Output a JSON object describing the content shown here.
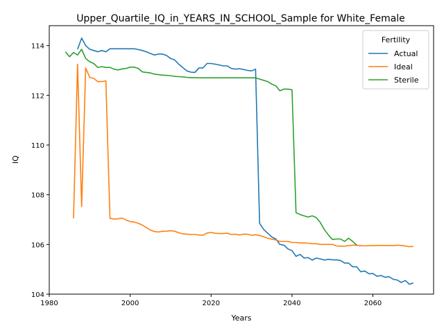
{
  "chart_data": {
    "type": "line",
    "title": "Upper_Quartile_IQ_in_YEARS_IN_SCHOOL_Sample for White_Female",
    "xlabel": "Years",
    "ylabel": "IQ",
    "xlim": [
      1980,
      2075
    ],
    "ylim": [
      104,
      114.8
    ],
    "xticks": [
      1980,
      2000,
      2020,
      2040,
      2060
    ],
    "yticks": [
      104,
      106,
      108,
      110,
      112,
      114
    ],
    "legend": {
      "title": "Fertility",
      "placement": "upper-right"
    },
    "series": [
      {
        "name": "Actual",
        "color": "#1f77b4",
        "points": [
          [
            1987,
            113.85
          ],
          [
            1988,
            114.3
          ],
          [
            1989,
            114.0
          ],
          [
            1990,
            113.85
          ],
          [
            1991,
            113.8
          ],
          [
            1992,
            113.75
          ],
          [
            1993,
            113.8
          ],
          [
            1994,
            113.75
          ],
          [
            1995,
            113.87
          ],
          [
            1996,
            113.87
          ],
          [
            1997,
            113.87
          ],
          [
            1998,
            113.87
          ],
          [
            1999,
            113.87
          ],
          [
            2000,
            113.87
          ],
          [
            2001,
            113.87
          ],
          [
            2002,
            113.84
          ],
          [
            2003,
            113.8
          ],
          [
            2004,
            113.75
          ],
          [
            2005,
            113.68
          ],
          [
            2006,
            113.62
          ],
          [
            2007,
            113.66
          ],
          [
            2008,
            113.66
          ],
          [
            2009,
            113.6
          ],
          [
            2010,
            113.48
          ],
          [
            2011,
            113.42
          ],
          [
            2012,
            113.25
          ],
          [
            2013,
            113.12
          ],
          [
            2014,
            112.98
          ],
          [
            2015,
            112.93
          ],
          [
            2016,
            112.92
          ],
          [
            2017,
            113.1
          ],
          [
            2018,
            113.1
          ],
          [
            2019,
            113.28
          ],
          [
            2020,
            113.28
          ],
          [
            2021,
            113.25
          ],
          [
            2022,
            113.22
          ],
          [
            2023,
            113.18
          ],
          [
            2024,
            113.18
          ],
          [
            2025,
            113.08
          ],
          [
            2026,
            113.05
          ],
          [
            2027,
            113.07
          ],
          [
            2028,
            113.04
          ],
          [
            2029,
            113.0
          ],
          [
            2030,
            112.98
          ],
          [
            2031,
            113.05
          ],
          [
            2032,
            106.85
          ],
          [
            2033,
            106.6
          ],
          [
            2034,
            106.45
          ],
          [
            2035,
            106.3
          ],
          [
            2036,
            106.22
          ],
          [
            2037,
            106.0
          ],
          [
            2038,
            105.97
          ],
          [
            2039,
            105.82
          ],
          [
            2040,
            105.75
          ],
          [
            2041,
            105.52
          ],
          [
            2042,
            105.6
          ],
          [
            2043,
            105.45
          ],
          [
            2044,
            105.47
          ],
          [
            2045,
            105.37
          ],
          [
            2046,
            105.45
          ],
          [
            2047,
            105.42
          ],
          [
            2048,
            105.37
          ],
          [
            2049,
            105.4
          ],
          [
            2050,
            105.38
          ],
          [
            2051,
            105.38
          ],
          [
            2052,
            105.35
          ],
          [
            2053,
            105.25
          ],
          [
            2054,
            105.25
          ],
          [
            2055,
            105.1
          ],
          [
            2056,
            105.1
          ],
          [
            2057,
            104.9
          ],
          [
            2058,
            104.93
          ],
          [
            2059,
            104.82
          ],
          [
            2060,
            104.83
          ],
          [
            2061,
            104.72
          ],
          [
            2062,
            104.75
          ],
          [
            2063,
            104.68
          ],
          [
            2064,
            104.7
          ],
          [
            2065,
            104.6
          ],
          [
            2066,
            104.57
          ],
          [
            2067,
            104.47
          ],
          [
            2068,
            104.55
          ],
          [
            2069,
            104.4
          ],
          [
            2070,
            104.45
          ]
        ]
      },
      {
        "name": "Ideal",
        "color": "#ff7f0e",
        "points": [
          [
            1986,
            107.05
          ],
          [
            1987,
            113.25
          ],
          [
            1988,
            107.52
          ],
          [
            1989,
            113.1
          ],
          [
            1990,
            112.72
          ],
          [
            1991,
            112.68
          ],
          [
            1992,
            112.55
          ],
          [
            1993,
            112.55
          ],
          [
            1994,
            112.58
          ],
          [
            1995,
            107.05
          ],
          [
            1996,
            107.02
          ],
          [
            1997,
            107.03
          ],
          [
            1998,
            107.06
          ],
          [
            1999,
            106.98
          ],
          [
            2000,
            106.92
          ],
          [
            2001,
            106.9
          ],
          [
            2002,
            106.85
          ],
          [
            2003,
            106.78
          ],
          [
            2004,
            106.68
          ],
          [
            2005,
            106.58
          ],
          [
            2006,
            106.52
          ],
          [
            2007,
            106.5
          ],
          [
            2008,
            106.53
          ],
          [
            2009,
            106.53
          ],
          [
            2010,
            106.55
          ],
          [
            2011,
            106.53
          ],
          [
            2012,
            106.47
          ],
          [
            2013,
            106.43
          ],
          [
            2014,
            106.41
          ],
          [
            2015,
            106.4
          ],
          [
            2016,
            106.4
          ],
          [
            2017,
            106.38
          ],
          [
            2018,
            106.37
          ],
          [
            2019,
            106.46
          ],
          [
            2020,
            106.48
          ],
          [
            2021,
            106.45
          ],
          [
            2022,
            106.44
          ],
          [
            2023,
            106.44
          ],
          [
            2024,
            106.45
          ],
          [
            2025,
            106.4
          ],
          [
            2026,
            106.41
          ],
          [
            2027,
            106.38
          ],
          [
            2028,
            106.41
          ],
          [
            2029,
            106.41
          ],
          [
            2030,
            106.37
          ],
          [
            2031,
            106.39
          ],
          [
            2032,
            106.36
          ],
          [
            2033,
            106.31
          ],
          [
            2034,
            106.25
          ],
          [
            2035,
            106.21
          ],
          [
            2036,
            106.18
          ],
          [
            2037,
            106.12
          ],
          [
            2038,
            106.12
          ],
          [
            2039,
            106.12
          ],
          [
            2040,
            106.08
          ],
          [
            2041,
            106.08
          ],
          [
            2042,
            106.06
          ],
          [
            2043,
            106.06
          ],
          [
            2044,
            106.05
          ],
          [
            2045,
            106.03
          ],
          [
            2046,
            106.03
          ],
          [
            2047,
            106.0
          ],
          [
            2048,
            106.0
          ],
          [
            2049,
            106.0
          ],
          [
            2050,
            106.0
          ],
          [
            2051,
            105.94
          ],
          [
            2052,
            105.93
          ],
          [
            2053,
            105.93
          ],
          [
            2054,
            105.95
          ],
          [
            2055,
            105.97
          ],
          [
            2056,
            105.97
          ],
          [
            2057,
            105.95
          ],
          [
            2058,
            105.94
          ],
          [
            2059,
            105.95
          ],
          [
            2060,
            105.95
          ],
          [
            2061,
            105.96
          ],
          [
            2062,
            105.96
          ],
          [
            2063,
            105.96
          ],
          [
            2064,
            105.96
          ],
          [
            2065,
            105.95
          ],
          [
            2066,
            105.97
          ],
          [
            2067,
            105.96
          ],
          [
            2068,
            105.94
          ],
          [
            2069,
            105.91
          ],
          [
            2070,
            105.92
          ]
        ]
      },
      {
        "name": "Sterile",
        "color": "#2ca02c",
        "points": [
          [
            1984,
            113.75
          ],
          [
            1985,
            113.55
          ],
          [
            1986,
            113.72
          ],
          [
            1987,
            113.62
          ],
          [
            1988,
            113.85
          ],
          [
            1989,
            113.48
          ],
          [
            1990,
            113.35
          ],
          [
            1991,
            113.28
          ],
          [
            1992,
            113.12
          ],
          [
            1993,
            113.15
          ],
          [
            1994,
            113.12
          ],
          [
            1995,
            113.12
          ],
          [
            1996,
            113.05
          ],
          [
            1997,
            113.02
          ],
          [
            1998,
            113.06
          ],
          [
            1999,
            113.08
          ],
          [
            2000,
            113.13
          ],
          [
            2001,
            113.13
          ],
          [
            2002,
            113.08
          ],
          [
            2003,
            112.94
          ],
          [
            2004,
            112.92
          ],
          [
            2005,
            112.9
          ],
          [
            2006,
            112.85
          ],
          [
            2007,
            112.83
          ],
          [
            2008,
            112.81
          ],
          [
            2009,
            112.8
          ],
          [
            2010,
            112.79
          ],
          [
            2011,
            112.76
          ],
          [
            2012,
            112.75
          ],
          [
            2013,
            112.74
          ],
          [
            2014,
            112.72
          ],
          [
            2015,
            112.71
          ],
          [
            2016,
            112.71
          ],
          [
            2017,
            112.7
          ],
          [
            2018,
            112.7
          ],
          [
            2019,
            112.7
          ],
          [
            2020,
            112.7
          ],
          [
            2021,
            112.7
          ],
          [
            2022,
            112.7
          ],
          [
            2023,
            112.7
          ],
          [
            2024,
            112.7
          ],
          [
            2025,
            112.7
          ],
          [
            2026,
            112.7
          ],
          [
            2027,
            112.7
          ],
          [
            2028,
            112.7
          ],
          [
            2029,
            112.7
          ],
          [
            2030,
            112.7
          ],
          [
            2031,
            112.7
          ],
          [
            2032,
            112.65
          ],
          [
            2033,
            112.6
          ],
          [
            2034,
            112.55
          ],
          [
            2035,
            112.45
          ],
          [
            2036,
            112.38
          ],
          [
            2037,
            112.18
          ],
          [
            2038,
            112.25
          ],
          [
            2039,
            112.25
          ],
          [
            2040,
            112.22
          ],
          [
            2041,
            107.28
          ],
          [
            2042,
            107.2
          ],
          [
            2043,
            107.15
          ],
          [
            2044,
            107.1
          ],
          [
            2045,
            107.15
          ],
          [
            2046,
            107.08
          ],
          [
            2047,
            106.88
          ],
          [
            2048,
            106.6
          ],
          [
            2049,
            106.38
          ],
          [
            2050,
            106.2
          ],
          [
            2051,
            106.22
          ],
          [
            2052,
            106.22
          ],
          [
            2053,
            106.12
          ],
          [
            2054,
            106.25
          ],
          [
            2055,
            106.12
          ],
          [
            2056,
            105.97
          ]
        ]
      }
    ]
  }
}
